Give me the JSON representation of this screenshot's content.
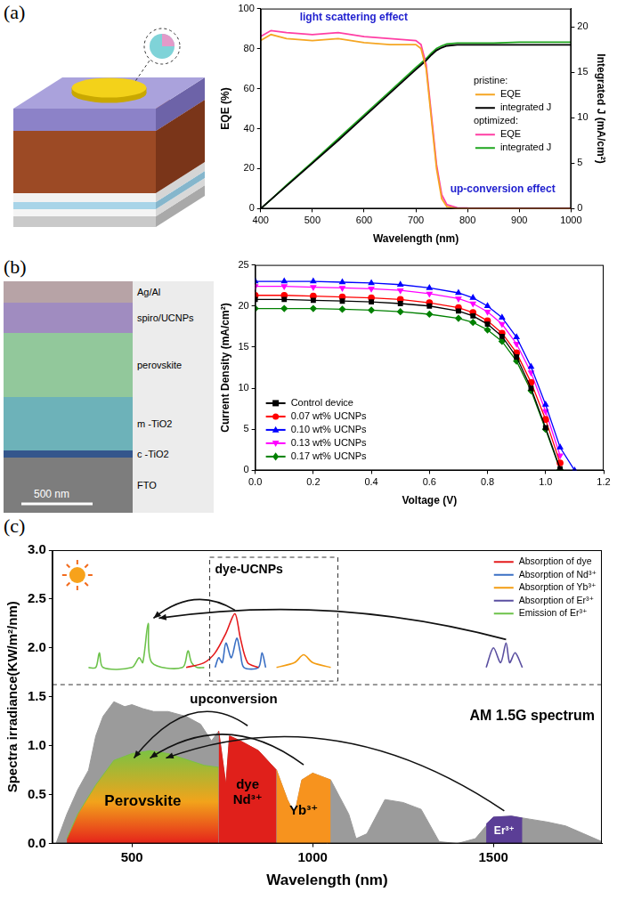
{
  "panel_labels": [
    "(a)",
    "(b)",
    "(c)"
  ],
  "sem_image": {
    "layers": [
      "Ag/Al",
      "spiro/UCNPs",
      "perovskite",
      "m -TiO2",
      "c -TiO2",
      "FTO"
    ],
    "scale_bar": "500 nm"
  },
  "chart_data": [
    {
      "type": "line",
      "x_label": "Wavelength (nm)",
      "y_label": "EQE (%)",
      "y2_label": "Integrated J (mA/cm²)",
      "xlim": [
        400,
        1000
      ],
      "xticks": [
        400,
        500,
        600,
        700,
        800,
        900,
        1000
      ],
      "ylim": [
        0,
        100
      ],
      "yticks": [
        0,
        20,
        40,
        60,
        80,
        100
      ],
      "y2lim": [
        0,
        22
      ],
      "y2ticks": [
        0,
        5,
        10,
        15,
        20
      ],
      "grid": false,
      "legend": "right",
      "annotations": [
        "light scattering effect",
        "up-conversion effect"
      ],
      "x": [
        400,
        420,
        450,
        500,
        550,
        600,
        650,
        700,
        710,
        720,
        730,
        740,
        750,
        760,
        780,
        800,
        850,
        900,
        950,
        1000
      ],
      "series": [
        {
          "name": "EQE",
          "group": "pristine:",
          "color": "#f5a623",
          "values": [
            84,
            87,
            85,
            84,
            85,
            83,
            82,
            82,
            80,
            70,
            45,
            20,
            5,
            1,
            0,
            0,
            0,
            0,
            0,
            0
          ]
        },
        {
          "name": "integrated J",
          "group": "pristine:",
          "color": "#000000",
          "axis": "y2",
          "values": [
            0,
            1.0,
            2.5,
            5.0,
            7.5,
            10.1,
            12.7,
            15.3,
            15.8,
            16.3,
            16.9,
            17.4,
            17.7,
            17.9,
            18.0,
            18.0,
            18.0,
            18.0,
            18.0,
            18.0
          ]
        },
        {
          "name": "EQE",
          "group": "optimized:",
          "color": "#ff3fa4",
          "values": [
            86,
            89,
            88,
            87,
            88,
            86,
            85,
            84,
            82,
            72,
            47,
            22,
            7,
            2,
            0.5,
            0.3,
            0.2,
            0.2,
            0.2,
            0.2
          ]
        },
        {
          "name": "integrated J",
          "group": "optimized:",
          "color": "#1fa61f",
          "axis": "y2",
          "values": [
            0,
            1.0,
            2.6,
            5.1,
            7.7,
            10.3,
            12.9,
            15.5,
            16.0,
            16.5,
            17.1,
            17.6,
            17.9,
            18.1,
            18.2,
            18.2,
            18.2,
            18.3,
            18.3,
            18.3
          ]
        }
      ]
    },
    {
      "type": "line",
      "x_label": "Voltage (V)",
      "y_label": "Current Density (mA/cm²)",
      "xlim": [
        0,
        1.2
      ],
      "xticks": [
        {
          "value": 0,
          "label": "0.0"
        },
        0.2,
        0.4,
        0.6,
        0.8,
        {
          "value": 1,
          "label": "1.0"
        },
        1.2
      ],
      "ylim": [
        0,
        25
      ],
      "yticks": [
        0,
        5,
        10,
        15,
        20,
        25
      ],
      "grid": false,
      "legend": "lower left",
      "x": [
        0,
        0.1,
        0.2,
        0.3,
        0.4,
        0.5,
        0.6,
        0.7,
        0.75,
        0.8,
        0.85,
        0.9,
        0.95,
        1.0,
        1.05,
        1.1
      ],
      "series": [
        {
          "name": "Control device",
          "color": "#000000",
          "marker": "square",
          "values": [
            20.8,
            20.8,
            20.7,
            20.6,
            20.5,
            20.3,
            20.0,
            19.4,
            18.8,
            17.8,
            16.3,
            13.8,
            10.0,
            5.2,
            0.2,
            null
          ]
        },
        {
          "name": "0.07 wt% UCNPs",
          "color": "#ff0000",
          "marker": "circle",
          "values": [
            21.3,
            21.3,
            21.2,
            21.1,
            21.0,
            20.8,
            20.4,
            19.8,
            19.2,
            18.2,
            16.7,
            14.3,
            10.7,
            6.2,
            0.9,
            null
          ]
        },
        {
          "name": "0.10 wt% UCNPs",
          "color": "#0000ff",
          "marker": "triangle",
          "values": [
            23.0,
            23.0,
            23.0,
            22.9,
            22.8,
            22.6,
            22.2,
            21.6,
            21.0,
            20.0,
            18.6,
            16.2,
            12.6,
            8.0,
            2.8,
            0
          ]
        },
        {
          "name": "0.13 wt% UCNPs",
          "color": "#ff00ff",
          "marker": "triangle_down",
          "values": [
            22.4,
            22.4,
            22.3,
            22.2,
            22.1,
            21.9,
            21.5,
            20.9,
            20.3,
            19.3,
            17.8,
            15.4,
            11.9,
            7.2,
            1.8,
            null
          ]
        },
        {
          "name": "0.17 wt% UCNPs",
          "color": "#008000",
          "marker": "diamond",
          "values": [
            19.7,
            19.7,
            19.7,
            19.6,
            19.5,
            19.3,
            19.0,
            18.5,
            18.0,
            17.1,
            15.7,
            13.3,
            9.7,
            5.0,
            0.1,
            null
          ]
        }
      ]
    },
    {
      "type": "area",
      "x_label": "Wavelength (nm)",
      "y_label": "Spectra irradiance(KW/m²/nm)",
      "xlim": [
        280,
        1800
      ],
      "xticks": [
        500,
        1000,
        1500
      ],
      "ylim": [
        0,
        3
      ],
      "yticks": [
        {
          "value": 0,
          "label": "0.0"
        },
        0.5,
        {
          "value": 1,
          "label": "1.0"
        },
        1.5,
        {
          "value": 2,
          "label": "2.0"
        },
        2.5,
        {
          "value": 3,
          "label": "3.0"
        }
      ],
      "grid": false,
      "annotations": [
        "upconversion"
      ],
      "series": [
        {
          "name": "AM 1.5G spectrum",
          "color": "#9b9b9b",
          "x": [
            290,
            320,
            350,
            380,
            400,
            420,
            450,
            480,
            500,
            530,
            560,
            600,
            650,
            690,
            720,
            740,
            760,
            770,
            800,
            850,
            900,
            930,
            950,
            970,
            1000,
            1050,
            1100,
            1120,
            1150,
            1200,
            1250,
            1300,
            1350,
            1400,
            1450,
            1500,
            1550,
            1600,
            1650,
            1700,
            1750,
            1800
          ],
          "values": [
            0,
            0.3,
            0.55,
            0.75,
            1.1,
            1.3,
            1.45,
            1.4,
            1.42,
            1.38,
            1.35,
            1.35,
            1.3,
            1.22,
            1.05,
            1.15,
            0.6,
            1.1,
            1.05,
            0.95,
            0.75,
            0.45,
            0.3,
            0.65,
            0.72,
            0.65,
            0.3,
            0.05,
            0.1,
            0.45,
            0.42,
            0.35,
            0.02,
            0.0,
            0.05,
            0.27,
            0.28,
            0.25,
            0.22,
            0.18,
            0.1,
            0.02
          ]
        },
        {
          "name": "Perovskite",
          "color": "#7cc242",
          "x": [
            320,
            350,
            400,
            450,
            500,
            550,
            600,
            650,
            700,
            740
          ],
          "values": [
            0.05,
            0.3,
            0.6,
            0.85,
            0.92,
            0.95,
            0.92,
            0.86,
            0.8,
            0.78
          ]
        },
        {
          "name": "dye Nd³⁺",
          "color": "#e0201b",
          "x": [
            740,
            760,
            770,
            800,
            850,
            900
          ],
          "values": [
            1.15,
            0.6,
            1.1,
            1.05,
            0.95,
            0.75
          ]
        },
        {
          "name": "Yb³⁺",
          "color": "#f7931e",
          "x": [
            900,
            930,
            950,
            970,
            1000,
            1050
          ],
          "values": [
            0.75,
            0.45,
            0.3,
            0.65,
            0.72,
            0.65
          ]
        },
        {
          "name": "Er³⁺",
          "color": "#5b3e96",
          "x": [
            1480,
            1500,
            1550,
            1580
          ],
          "values": [
            0.2,
            0.27,
            0.28,
            0.26
          ]
        }
      ],
      "inset": {
        "title": "dye-UCNPs",
        "type": "line",
        "legend": "upper right",
        "series": [
          {
            "name": "Absorption of dye",
            "color": "#e41a1c",
            "x": [
              650,
              700,
              730,
              760,
              785,
              800,
              820,
              850
            ],
            "values": [
              1.8,
              1.85,
              1.95,
              2.15,
              2.35,
              2.1,
              1.85,
              1.8
            ]
          },
          {
            "name": "Absorption of Nd³⁺",
            "color": "#3a6fc4",
            "x": [
              730,
              740,
              750,
              760,
              775,
              790,
              800,
              810,
              850,
              860,
              870
            ],
            "values": [
              1.8,
              1.9,
              1.85,
              2.05,
              1.9,
              2.1,
              1.95,
              1.8,
              1.8,
              1.95,
              1.8
            ]
          },
          {
            "name": "Absorption of Yb³⁺",
            "color": "#f39c12",
            "x": [
              900,
              950,
              975,
              1000,
              1050
            ],
            "values": [
              1.8,
              1.85,
              1.93,
              1.85,
              1.8
            ]
          },
          {
            "name": "Absorption of Er³⁺",
            "color": "#5a4fa0",
            "x": [
              1480,
              1500,
              1520,
              1535,
              1545,
              1560,
              1580
            ],
            "values": [
              1.8,
              2.0,
              1.85,
              2.05,
              1.85,
              1.95,
              1.8
            ]
          },
          {
            "name": "Emission of Er³⁺",
            "color": "#6cc24a",
            "x": [
              380,
              400,
              410,
              420,
              500,
              520,
              530,
              545,
              555,
              640,
              655,
              665,
              680,
              700
            ],
            "values": [
              1.8,
              1.8,
              1.95,
              1.8,
              1.8,
              1.9,
              1.85,
              2.25,
              1.85,
              1.8,
              1.97,
              1.85,
              1.8,
              1.8
            ]
          }
        ]
      }
    }
  ]
}
